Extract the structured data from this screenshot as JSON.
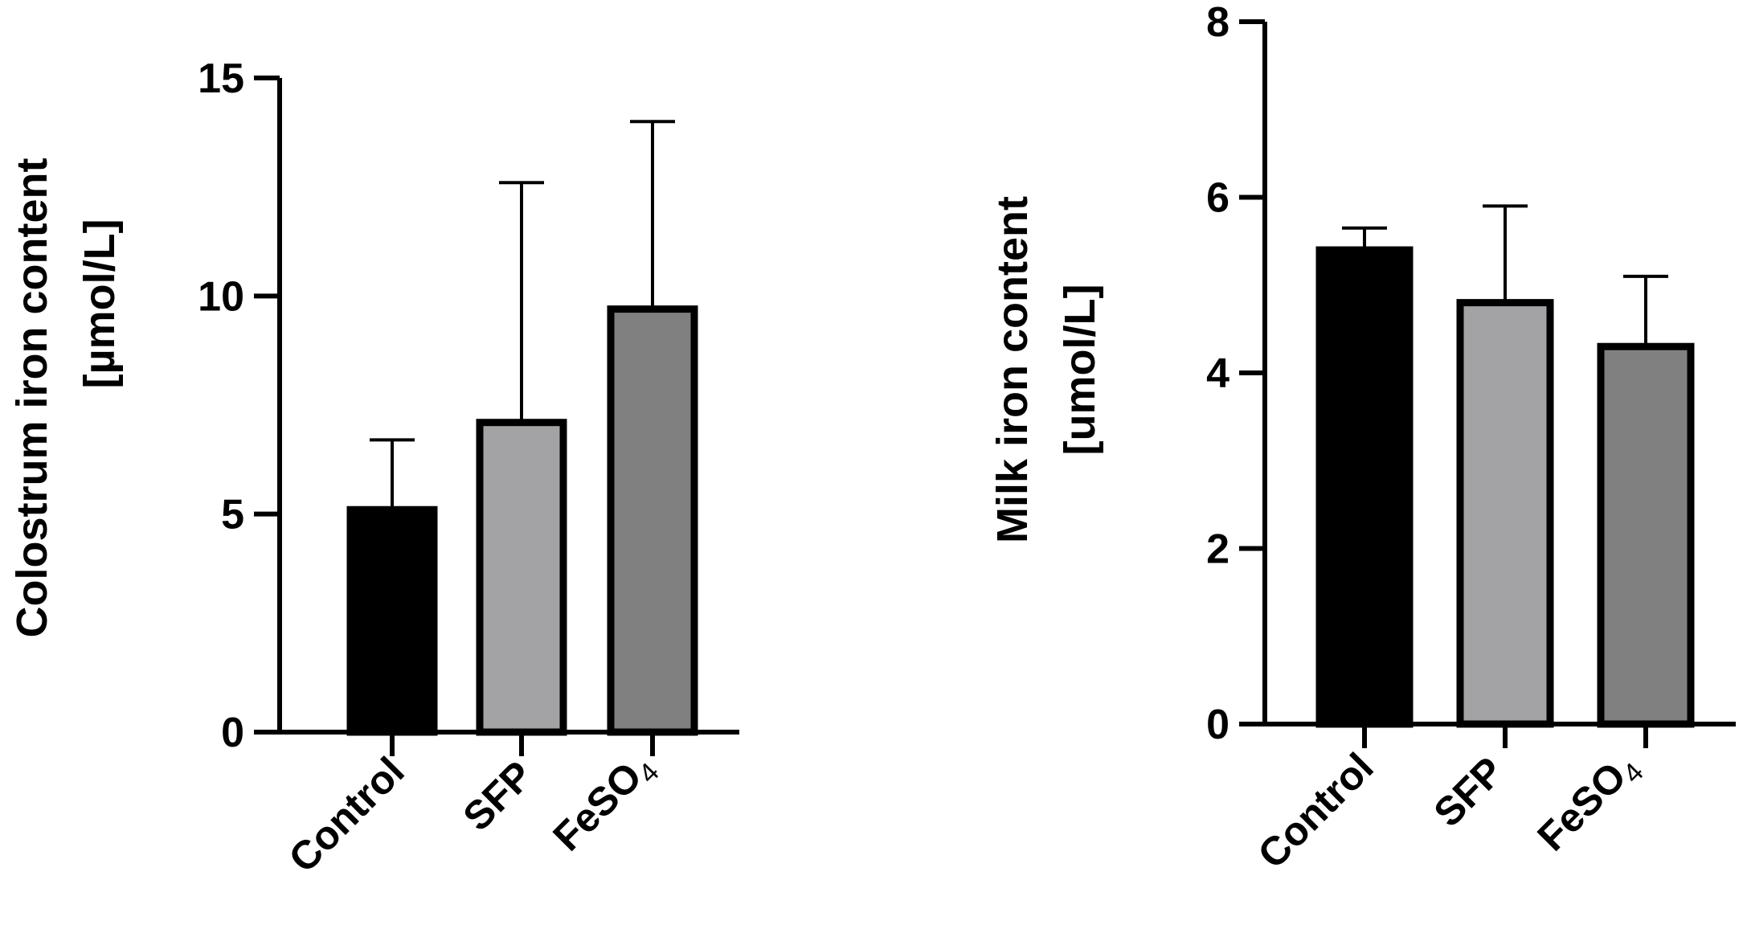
{
  "chart_data": [
    {
      "type": "bar",
      "categories": [
        "Control",
        "SFP",
        "FeSO4"
      ],
      "values": [
        5.1,
        7.1,
        9.7
      ],
      "error_upper": [
        6.7,
        12.6,
        14.0
      ],
      "ylim": [
        0,
        15
      ],
      "yticks": [
        "0",
        "5",
        "10",
        "15"
      ],
      "ylabel_line1": "Colostrum iron content",
      "ylabel_line2": "[µmol/L]",
      "xlabel": "",
      "title": "",
      "grid": false,
      "bar_colors": [
        "#000000",
        "#a3a3a6",
        "#808080"
      ]
    },
    {
      "type": "bar",
      "categories": [
        "Control",
        "SFP",
        "FeSO4"
      ],
      "values": [
        5.4,
        4.8,
        4.3
      ],
      "error_upper": [
        5.65,
        5.9,
        5.1
      ],
      "ylim": [
        0,
        8
      ],
      "yticks": [
        "0",
        "2",
        "4",
        "6",
        "8"
      ],
      "ylabel_line1": "Milk iron content",
      "ylabel_line2": "[umol/L]",
      "xlabel": "",
      "title": "",
      "grid": false,
      "bar_colors": [
        "#000000",
        "#a3a3a6",
        "#808080"
      ]
    }
  ]
}
